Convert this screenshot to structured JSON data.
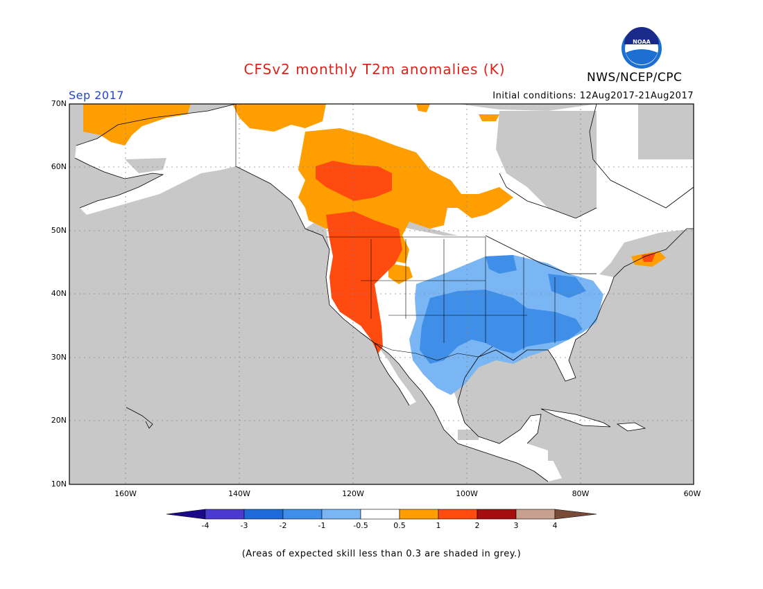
{
  "title": "CFSv2 monthly T2m anomalies (K)",
  "organization": "NWS/NCEP/CPC",
  "logo_text": "NOAA",
  "valid_month": "Sep 2017",
  "initial_conditions": "Initial conditions: 12Aug2017-21Aug2017",
  "footnote": "(Areas of expected skill less than 0.3 are shaded in grey.)",
  "map": {
    "lat_labels": [
      "70N",
      "60N",
      "50N",
      "40N",
      "30N",
      "20N",
      "10N"
    ],
    "lon_labels": [
      "160W",
      "140W",
      "120W",
      "100W",
      "80W",
      "60W"
    ],
    "lat_range": [
      10,
      70
    ],
    "lon_range": [
      -171,
      -60
    ]
  },
  "colorbar": {
    "labels": [
      "-4",
      "-3",
      "-2",
      "-1",
      "-0.5",
      "0.5",
      "1",
      "2",
      "3",
      "4"
    ],
    "colors": {
      "below_min": "#1a0a8a",
      "m4_m3": "#4a3ad0",
      "m3_m2": "#1e6ad8",
      "m2_m1": "#3f8ee8",
      "m1_m05": "#7ab6f4",
      "m05_05": "#ffffff",
      "p05_1": "#ff9e00",
      "p1_2": "#ff4a10",
      "p2_3": "#a50e0e",
      "p3_4": "#c8a090",
      "above_max": "#7a4a38"
    }
  },
  "colors": {
    "skill_grey": "#c8c8c8",
    "land_white": "#ffffff",
    "title_red": "#e0201a",
    "month_blue": "#2244cc"
  }
}
